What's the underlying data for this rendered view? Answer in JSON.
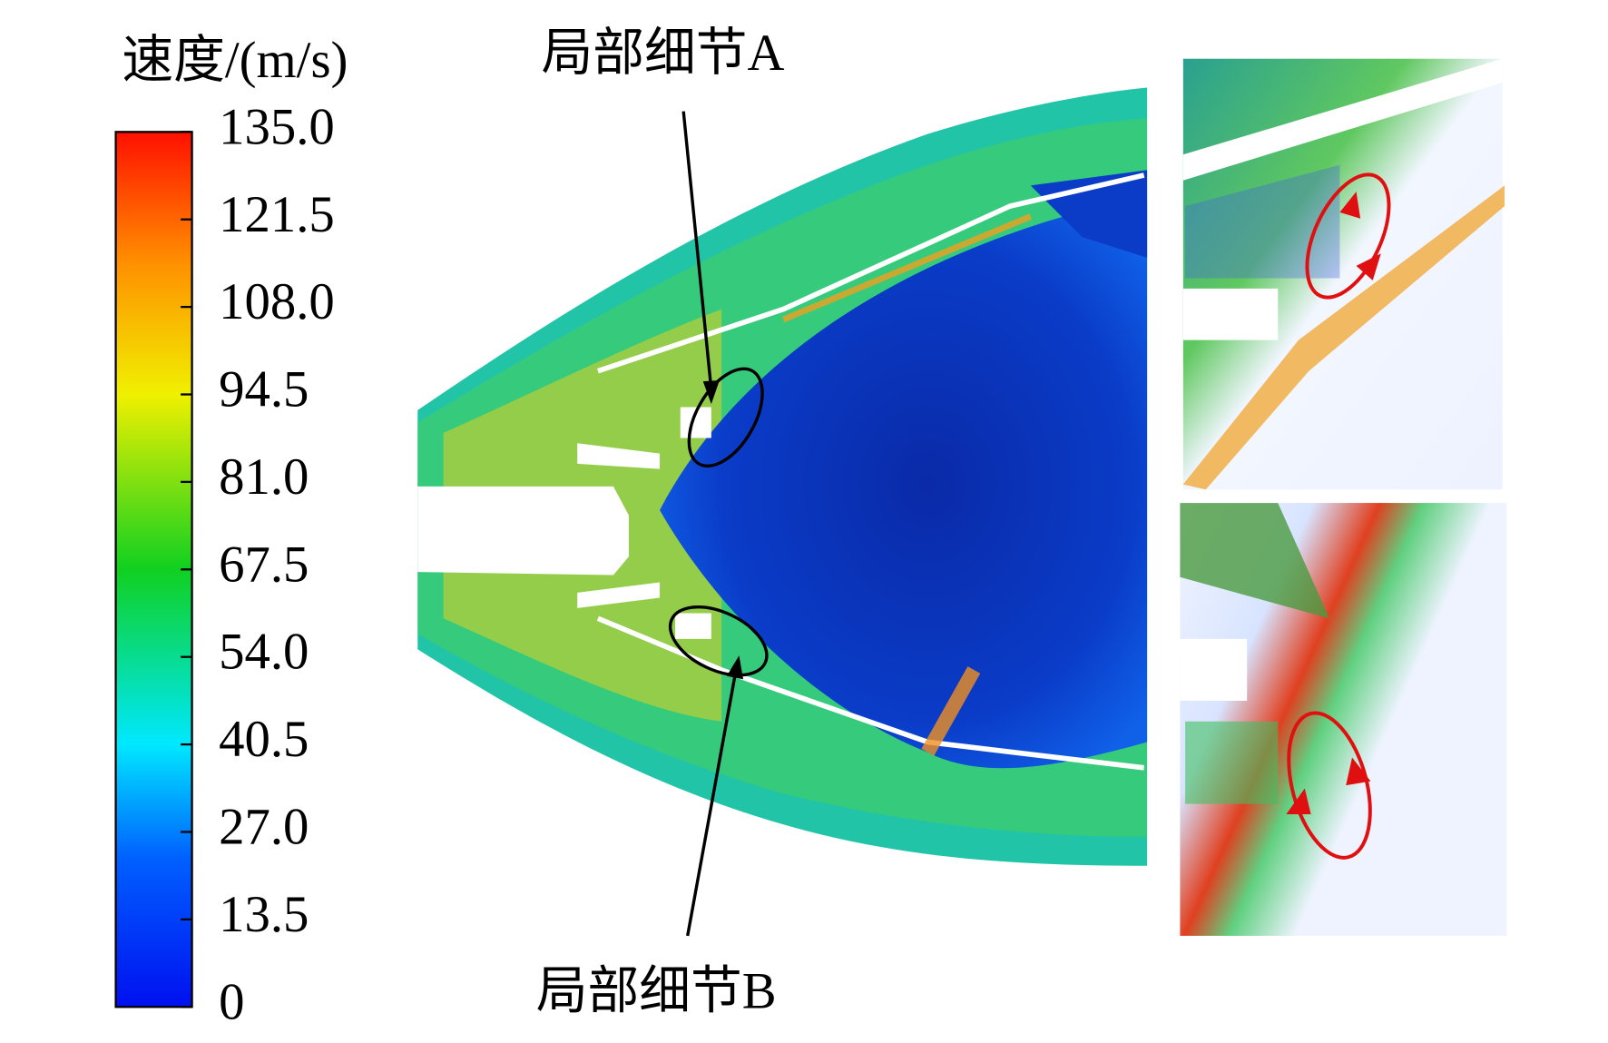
{
  "colorbar": {
    "title": "速度/(m/s)",
    "ticks": [
      {
        "value": 135,
        "label": "135.0"
      },
      {
        "value": 121.5,
        "label": "121.5"
      },
      {
        "value": 108,
        "label": "108.0"
      },
      94.5,
      {
        "value": 81,
        "label": "81.0"
      },
      67.5,
      {
        "value": 54,
        "label": "54.0"
      },
      40.5,
      {
        "value": 27,
        "label": "27.0"
      },
      13.5,
      0
    ]
  },
  "annotations": {
    "detail_a": "局部细节A",
    "detail_b": "局部细节B"
  }
}
